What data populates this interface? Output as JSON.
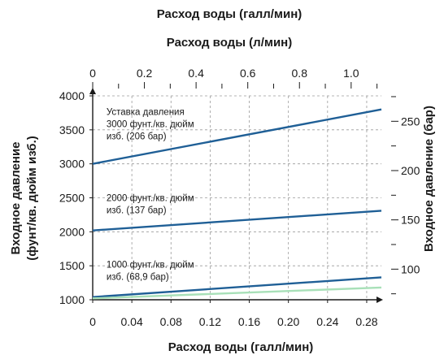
{
  "chart_data": {
    "type": "line",
    "title": "Расход воды (галл/мин)",
    "top_axis_label": "Расход воды (л/мин)",
    "xlabel": "Расход воды (галл/мин)",
    "ylabel_lines": [
      "Входное давление",
      "(фунт/кв. дюйм изб.)"
    ],
    "ylabel_right": "Входное давление (бар)",
    "xlim": [
      0,
      0.295
    ],
    "ylim": [
      1000,
      4000
    ],
    "x_ticks": [
      "0",
      "0.04",
      "0.08",
      "0.12",
      "0.16",
      "0.20",
      "0.24",
      "0.28"
    ],
    "x_tick_values": [
      0,
      0.04,
      0.08,
      0.12,
      0.16,
      0.2,
      0.24,
      0.28
    ],
    "y_ticks": [
      "1000",
      "1500",
      "2000",
      "2500",
      "3000",
      "3500",
      "4000"
    ],
    "y_tick_values": [
      1000,
      1500,
      2000,
      2500,
      3000,
      3500,
      4000
    ],
    "top_ticks": [
      "0",
      "0.2",
      "0.4",
      "0.6",
      "0.8",
      "1.0"
    ],
    "top_tick_values": [
      0,
      0.2,
      0.4,
      0.6,
      0.8,
      1.0
    ],
    "top_xlim": [
      0,
      1.117
    ],
    "right_ticks": [
      "100",
      "150",
      "200",
      "250"
    ],
    "right_tick_values": [
      100,
      150,
      200,
      250
    ],
    "right_ylim": [
      68.95,
      275.8
    ],
    "grid": true,
    "series": [
      {
        "x": [
          0,
          0.295
        ],
        "y": [
          3000,
          3800
        ],
        "color": "#1f5f96"
      },
      {
        "x": [
          0,
          0.295
        ],
        "y": [
          2020,
          2310
        ],
        "color": "#1f5f96"
      },
      {
        "x": [
          0,
          0.295
        ],
        "y": [
          1040,
          1330
        ],
        "color": "#1f5f96"
      },
      {
        "x": [
          0,
          0.295
        ],
        "y": [
          1020,
          1180
        ],
        "color": "#a8e0b8"
      }
    ],
    "annotations": [
      {
        "lines": [
          "Уставка давления",
          "3000 фунт./кв. дюйм",
          "изб. (206 бар)"
        ],
        "x": 0.009,
        "y": 3720
      },
      {
        "lines": [
          "2000 фунт./кв. дюйм",
          "изб. (137 бар)"
        ],
        "x": 0.009,
        "y": 2450
      },
      {
        "lines": [
          "1000 фунт./кв. дюйм",
          "изб. (68,9 бар)"
        ],
        "x": 0.009,
        "y": 1470
      }
    ]
  }
}
